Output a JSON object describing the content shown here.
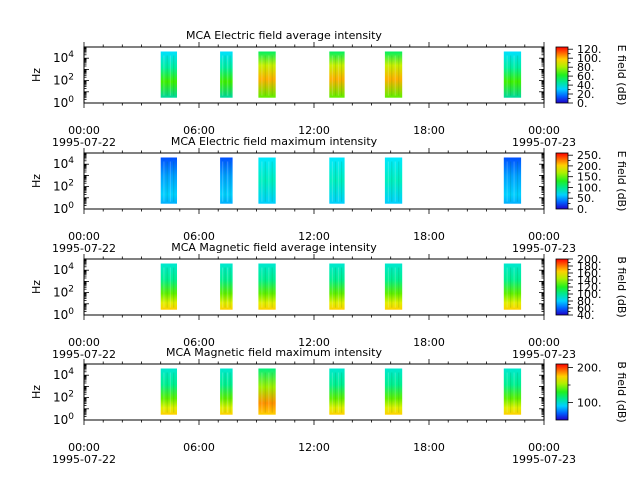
{
  "chart_data": [
    {
      "type": "heatmap",
      "title": "MCA  Electric field average intensity",
      "ylabel": "Hz",
      "colorbar_label": "E field (dB)",
      "colorbar_range": [
        0,
        125
      ],
      "colorbar_ticks": [
        "0.",
        "20.",
        "40.",
        "60.",
        "80.",
        "100.",
        "120."
      ],
      "colorbar_minor_ticks": [
        10,
        30,
        50,
        70,
        90,
        110
      ],
      "yticks": [
        {
          "base": "10",
          "exp": "0",
          "value": 1
        },
        {
          "base": "10",
          "exp": "2",
          "value": 100
        },
        {
          "base": "10",
          "exp": "4",
          "value": 10000
        }
      ],
      "ylim": [
        1,
        100000
      ],
      "scale": "log",
      "xlim_hours": [
        0,
        24
      ],
      "xticks": [
        {
          "time": "00:00",
          "date": "1995-07-22",
          "hour": 0
        },
        {
          "time": "06:00",
          "date": "",
          "hour": 6
        },
        {
          "time": "12:00",
          "date": "",
          "hour": 12
        },
        {
          "time": "18:00",
          "date": "",
          "hour": 18
        },
        {
          "time": "00:00",
          "date": "1995-07-23",
          "hour": 24
        }
      ],
      "segments": [
        {
          "start": 4.0,
          "end": 4.85,
          "style": "warm"
        },
        {
          "start": 7.1,
          "end": 7.75,
          "style": "warm"
        },
        {
          "start": 9.1,
          "end": 10.0,
          "style": "hot"
        },
        {
          "start": 12.8,
          "end": 13.6,
          "style": "hot"
        },
        {
          "start": 15.7,
          "end": 16.6,
          "style": "hot"
        },
        {
          "start": 21.9,
          "end": 22.8,
          "style": "warm"
        }
      ]
    },
    {
      "type": "heatmap",
      "title": "MCA  Electric field maximum intensity",
      "ylabel": "Hz",
      "colorbar_label": "E field (dB)",
      "colorbar_range": [
        0,
        260
      ],
      "colorbar_ticks": [
        "0.",
        "50.",
        "100.",
        "150.",
        "200.",
        "250."
      ],
      "colorbar_minor_ticks": [
        25,
        75,
        125,
        175,
        225
      ],
      "yticks": [
        {
          "base": "10",
          "exp": "0",
          "value": 1
        },
        {
          "base": "10",
          "exp": "2",
          "value": 100
        },
        {
          "base": "10",
          "exp": "4",
          "value": 10000
        }
      ],
      "ylim": [
        1,
        100000
      ],
      "scale": "log",
      "xlim_hours": [
        0,
        24
      ],
      "xticks": [
        {
          "time": "00:00",
          "date": "1995-07-22",
          "hour": 0
        },
        {
          "time": "06:00",
          "date": "",
          "hour": 6
        },
        {
          "time": "12:00",
          "date": "",
          "hour": 12
        },
        {
          "time": "18:00",
          "date": "",
          "hour": 18
        },
        {
          "time": "00:00",
          "date": "1995-07-23",
          "hour": 24
        }
      ],
      "segments": [
        {
          "start": 4.0,
          "end": 4.85,
          "style": "cool"
        },
        {
          "start": 7.1,
          "end": 7.75,
          "style": "cool"
        },
        {
          "start": 9.1,
          "end": 10.0,
          "style": "mid"
        },
        {
          "start": 12.8,
          "end": 13.6,
          "style": "mid"
        },
        {
          "start": 15.7,
          "end": 16.6,
          "style": "mid"
        },
        {
          "start": 21.9,
          "end": 22.8,
          "style": "cool"
        }
      ]
    },
    {
      "type": "heatmap",
      "title": "MCA  Magnetic field average intensity",
      "ylabel": "Hz",
      "colorbar_label": "B field (dB)",
      "colorbar_range": [
        40,
        200
      ],
      "colorbar_ticks": [
        "40.",
        "60.",
        "80.",
        "100.",
        "120.",
        "140.",
        "160.",
        "180.",
        "200."
      ],
      "colorbar_minor_ticks": [
        50,
        70,
        90,
        110,
        130,
        150,
        170,
        190
      ],
      "yticks": [
        {
          "base": "10",
          "exp": "0",
          "value": 1
        },
        {
          "base": "10",
          "exp": "2",
          "value": 100
        },
        {
          "base": "10",
          "exp": "4",
          "value": 10000
        }
      ],
      "ylim": [
        1,
        100000
      ],
      "scale": "log",
      "xlim_hours": [
        0,
        24
      ],
      "xticks": [
        {
          "time": "00:00",
          "date": "1995-07-22",
          "hour": 0
        },
        {
          "time": "06:00",
          "date": "",
          "hour": 6
        },
        {
          "time": "12:00",
          "date": "",
          "hour": 12
        },
        {
          "time": "18:00",
          "date": "",
          "hour": 18
        },
        {
          "time": "00:00",
          "date": "1995-07-23",
          "hour": 24
        }
      ],
      "segments": [
        {
          "start": 4.0,
          "end": 4.85,
          "style": "bgrad"
        },
        {
          "start": 7.1,
          "end": 7.75,
          "style": "bgrad"
        },
        {
          "start": 9.1,
          "end": 10.0,
          "style": "bgrad"
        },
        {
          "start": 12.8,
          "end": 13.6,
          "style": "bgrad"
        },
        {
          "start": 15.7,
          "end": 16.6,
          "style": "bgrad"
        },
        {
          "start": 21.9,
          "end": 22.8,
          "style": "bgrad"
        }
      ]
    },
    {
      "type": "heatmap",
      "title": "MCA  Magnetic field maximum intensity",
      "ylabel": "Hz",
      "colorbar_label": "B field (dB)",
      "colorbar_range": [
        50,
        210
      ],
      "colorbar_ticks": [
        "100.",
        "200."
      ],
      "colorbar_minor_ticks": [
        150
      ],
      "yticks": [
        {
          "base": "10",
          "exp": "0",
          "value": 1
        },
        {
          "base": "10",
          "exp": "2",
          "value": 100
        },
        {
          "base": "10",
          "exp": "4",
          "value": 10000
        }
      ],
      "ylim": [
        1,
        100000
      ],
      "scale": "log",
      "xlim_hours": [
        0,
        24
      ],
      "xticks": [
        {
          "time": "00:00",
          "date": "1995-07-22",
          "hour": 0
        },
        {
          "time": "06:00",
          "date": "",
          "hour": 6
        },
        {
          "time": "12:00",
          "date": "",
          "hour": 12
        },
        {
          "time": "18:00",
          "date": "",
          "hour": 18
        },
        {
          "time": "00:00",
          "date": "1995-07-23",
          "hour": 24
        }
      ],
      "segments": [
        {
          "start": 4.0,
          "end": 4.85,
          "style": "bgrad"
        },
        {
          "start": 7.1,
          "end": 7.75,
          "style": "bgrad"
        },
        {
          "start": 9.1,
          "end": 10.0,
          "style": "bgradhot"
        },
        {
          "start": 12.8,
          "end": 13.6,
          "style": "bgrad"
        },
        {
          "start": 15.7,
          "end": 16.6,
          "style": "bgrad"
        },
        {
          "start": 21.9,
          "end": 22.8,
          "style": "bgrad"
        }
      ]
    }
  ]
}
